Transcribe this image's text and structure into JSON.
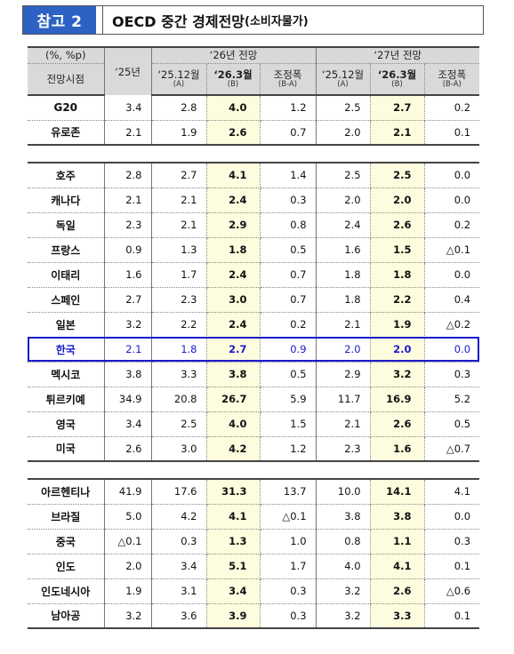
{
  "title": {
    "badge": "참고 2",
    "main": "OECD 중간 경제전망",
    "sub": "(소비자물가)"
  },
  "header": {
    "unit": "(%, %p)",
    "row_label": "전망시점",
    "col_25": "‘25년",
    "group_26": "‘26년 전망",
    "group_27": "‘27년 전망",
    "sub": [
      {
        "main": "‘25.12월",
        "note": "(A)"
      },
      {
        "main": "‘26.3월",
        "note": "(B)"
      },
      {
        "main": "조정폭",
        "note": "(B-A)"
      },
      {
        "main": "‘25.12월",
        "note": "(A)"
      },
      {
        "main": "‘26.3월",
        "note": "(B)"
      },
      {
        "main": "조정폭",
        "note": "(B-A)"
      }
    ]
  },
  "groups": [
    {
      "rows": [
        {
          "name": "G20",
          "y25": "3.4",
          "a26": "2.8",
          "b26": "4.0",
          "d26": "1.2",
          "a27": "2.5",
          "b27": "2.7",
          "d27": "0.2"
        },
        {
          "name": "유로존",
          "y25": "2.1",
          "a26": "1.9",
          "b26": "2.6",
          "d26": "0.7",
          "a27": "2.0",
          "b27": "2.1",
          "d27": "0.1"
        }
      ]
    },
    {
      "rows": [
        {
          "name": "호주",
          "y25": "2.8",
          "a26": "2.7",
          "b26": "4.1",
          "d26": "1.4",
          "a27": "2.5",
          "b27": "2.5",
          "d27": "0.0"
        },
        {
          "name": "캐나다",
          "y25": "2.1",
          "a26": "2.1",
          "b26": "2.4",
          "d26": "0.3",
          "a27": "2.0",
          "b27": "2.0",
          "d27": "0.0"
        },
        {
          "name": "독일",
          "y25": "2.3",
          "a26": "2.1",
          "b26": "2.9",
          "d26": "0.8",
          "a27": "2.4",
          "b27": "2.6",
          "d27": "0.2"
        },
        {
          "name": "프랑스",
          "y25": "0.9",
          "a26": "1.3",
          "b26": "1.8",
          "d26": "0.5",
          "a27": "1.6",
          "b27": "1.5",
          "d27": "△0.1"
        },
        {
          "name": "이태리",
          "y25": "1.6",
          "a26": "1.7",
          "b26": "2.4",
          "d26": "0.7",
          "a27": "1.8",
          "b27": "1.8",
          "d27": "0.0"
        },
        {
          "name": "스페인",
          "y25": "2.7",
          "a26": "2.3",
          "b26": "3.0",
          "d26": "0.7",
          "a27": "1.8",
          "b27": "2.2",
          "d27": "0.4"
        },
        {
          "name": "일본",
          "y25": "3.2",
          "a26": "2.2",
          "b26": "2.4",
          "d26": "0.2",
          "a27": "2.1",
          "b27": "1.9",
          "d27": "△0.2"
        },
        {
          "name": "한국",
          "y25": "2.1",
          "a26": "1.8",
          "b26": "2.7",
          "d26": "0.9",
          "a27": "2.0",
          "b27": "2.0",
          "d27": "0.0",
          "highlight": true
        },
        {
          "name": "멕시코",
          "y25": "3.8",
          "a26": "3.3",
          "b26": "3.8",
          "d26": "0.5",
          "a27": "2.9",
          "b27": "3.2",
          "d27": "0.3"
        },
        {
          "name": "튀르키예",
          "y25": "34.9",
          "a26": "20.8",
          "b26": "26.7",
          "d26": "5.9",
          "a27": "11.7",
          "b27": "16.9",
          "d27": "5.2"
        },
        {
          "name": "영국",
          "y25": "3.4",
          "a26": "2.5",
          "b26": "4.0",
          "d26": "1.5",
          "a27": "2.1",
          "b27": "2.6",
          "d27": "0.5"
        },
        {
          "name": "미국",
          "y25": "2.6",
          "a26": "3.0",
          "b26": "4.2",
          "d26": "1.2",
          "a27": "2.3",
          "b27": "1.6",
          "d27": "△0.7"
        }
      ]
    },
    {
      "rows": [
        {
          "name": "아르헨티나",
          "y25": "41.9",
          "a26": "17.6",
          "b26": "31.3",
          "d26": "13.7",
          "a27": "10.0",
          "b27": "14.1",
          "d27": "4.1"
        },
        {
          "name": "브라질",
          "y25": "5.0",
          "a26": "4.2",
          "b26": "4.1",
          "d26": "△0.1",
          "a27": "3.8",
          "b27": "3.8",
          "d27": "0.0"
        },
        {
          "name": "중국",
          "y25": "△0.1",
          "a26": "0.3",
          "b26": "1.3",
          "d26": "1.0",
          "a27": "0.8",
          "b27": "1.1",
          "d27": "0.3"
        },
        {
          "name": "인도",
          "y25": "2.0",
          "a26": "3.4",
          "b26": "5.1",
          "d26": "1.7",
          "a27": "4.0",
          "b27": "4.1",
          "d27": "0.1"
        },
        {
          "name": "인도네시아",
          "y25": "1.9",
          "a26": "3.1",
          "b26": "3.4",
          "d26": "0.3",
          "a27": "3.2",
          "b27": "2.6",
          "d27": "△0.6"
        },
        {
          "name": "남아공",
          "y25": "3.2",
          "a26": "3.6",
          "b26": "3.9",
          "d26": "0.3",
          "a27": "3.2",
          "b27": "3.3",
          "d27": "0.1"
        }
      ]
    }
  ],
  "colors": {
    "badge": "#2d62c4",
    "highlight_fill": "#fefcde",
    "header_fill": "#d9d9d9",
    "korea_box": "#1a1acb"
  }
}
